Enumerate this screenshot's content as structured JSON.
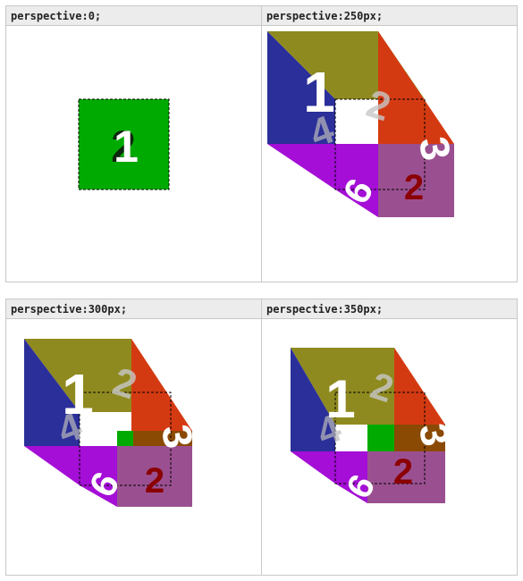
{
  "panels": [
    {
      "label": "perspective:0;"
    },
    {
      "label": "perspective:250px;"
    },
    {
      "label": "perspective:300px;"
    },
    {
      "label": "perspective:350px;"
    }
  ],
  "faces": {
    "front": "1",
    "back": "2",
    "right": "3",
    "left": "4",
    "bottom": "6"
  },
  "colors": {
    "front_green": "#00aa00",
    "top_olive": "#8f8a1f",
    "left_blue": "#2b2f99",
    "right_red": "#d43a12",
    "right_brown": "#8a4a04",
    "bottom_magenta": "#a40ed6",
    "bottom_mauve": "#9a5090"
  }
}
